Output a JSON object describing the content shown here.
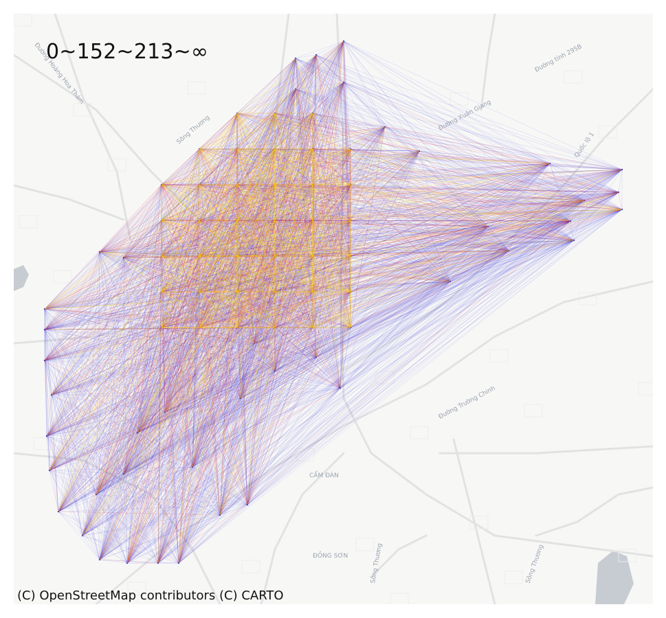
{
  "title": "0~152~213~∞",
  "attribution": "(C) OpenStreetMap contributors (C) CARTO",
  "map_labels": [
    {
      "text": "Đường Hoàng Hoa Thám",
      "rotate": 52
    },
    {
      "text": "Đường tỉnh 295B",
      "rotate": -28
    },
    {
      "text": "Đường Xuân Giang",
      "rotate": -28
    },
    {
      "text": "Sông Thương",
      "rotate": -40
    },
    {
      "text": "Đường Trường Chinh",
      "rotate": -28
    },
    {
      "text": "CẨM ĐÀN",
      "rotate": 0
    },
    {
      "text": "ĐỒNG SƠN",
      "rotate": 0
    },
    {
      "text": "Sông Thương",
      "rotate": -80
    },
    {
      "text": "Sông Thương",
      "rotate": -70
    },
    {
      "text": "Quốc lộ 1",
      "rotate": -55
    }
  ],
  "legend_bins": [
    {
      "range": "0~152",
      "color": "#1f1fe0"
    },
    {
      "range": "152~213",
      "color": "#d81b2c"
    },
    {
      "range": "213~∞",
      "color": "#ffd700"
    }
  ],
  "colors": {
    "low": "#2222dd",
    "mid": "#dd2233",
    "high": "#ffd500",
    "water": "#c6ccd2",
    "roads": "#e2e2e2"
  }
}
